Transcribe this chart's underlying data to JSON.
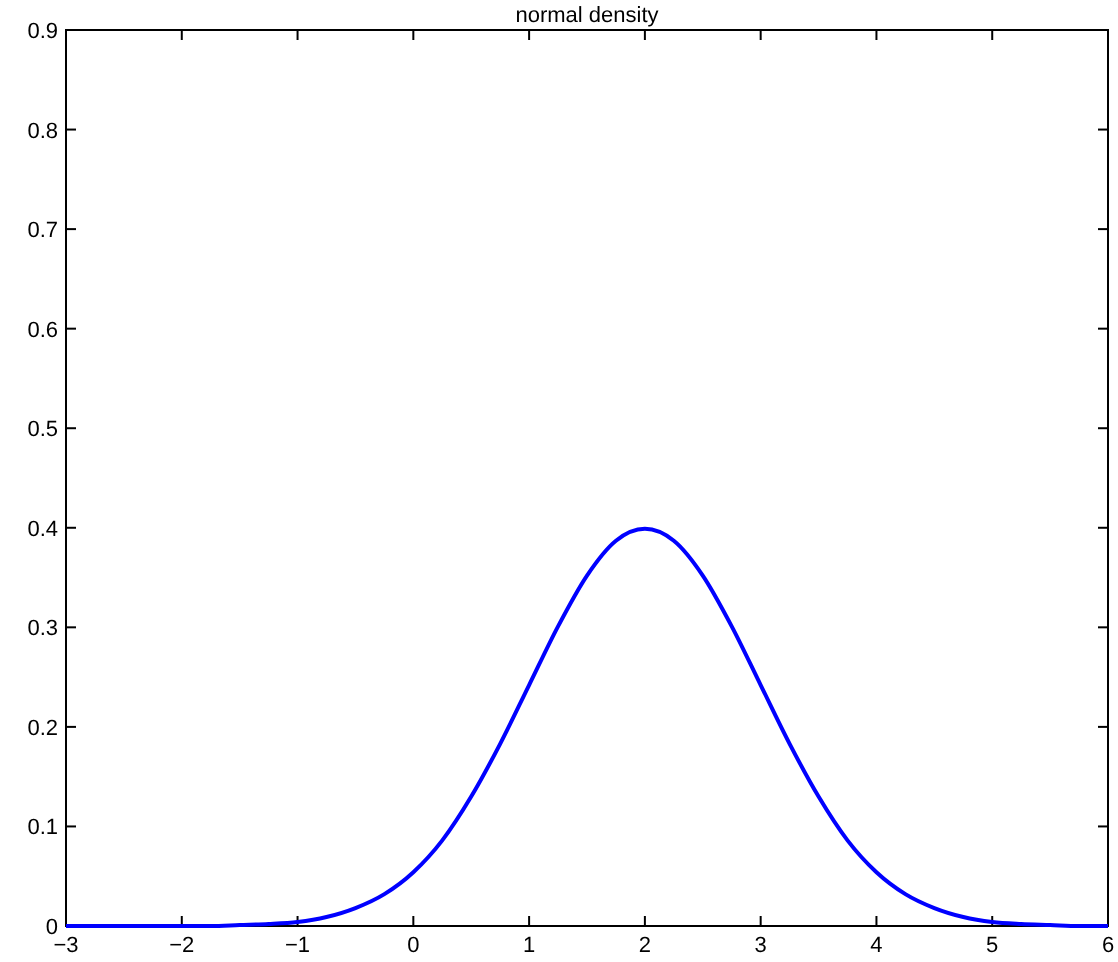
{
  "chart_data": {
    "type": "line",
    "title": "normal density",
    "x": [
      -3,
      -2.75,
      -2.5,
      -2.25,
      -2,
      -1.75,
      -1.5,
      -1.25,
      -1,
      -0.75,
      -0.5,
      -0.25,
      0,
      0.25,
      0.5,
      0.75,
      1,
      1.25,
      1.5,
      1.75,
      2,
      2.25,
      2.5,
      2.75,
      3,
      3.25,
      3.5,
      3.75,
      4,
      4.25,
      4.5,
      4.75,
      5,
      5.25,
      5.5,
      5.75,
      6
    ],
    "series": [
      {
        "color": "#0000ff",
        "values": [
          0,
          0,
          0,
          0,
          0,
          0,
          0.001,
          0.002,
          0.004,
          0.009,
          0.018,
          0.032,
          0.054,
          0.086,
          0.13,
          0.183,
          0.242,
          0.301,
          0.352,
          0.387,
          0.399,
          0.387,
          0.352,
          0.301,
          0.242,
          0.183,
          0.13,
          0.086,
          0.054,
          0.032,
          0.018,
          0.009,
          0.004,
          0.002,
          0.001,
          0,
          0
        ]
      }
    ],
    "xlim": [
      -3,
      6
    ],
    "xticks": [
      -3,
      -2,
      -1,
      0,
      1,
      2,
      3,
      4,
      5,
      6
    ],
    "ylim": [
      0,
      0.9
    ],
    "yticks": [
      0,
      0.1,
      0.2,
      0.3,
      0.4,
      0.5,
      0.6,
      0.7,
      0.8,
      0.9
    ],
    "grid": false,
    "marker": "none",
    "line_style": "solid"
  }
}
